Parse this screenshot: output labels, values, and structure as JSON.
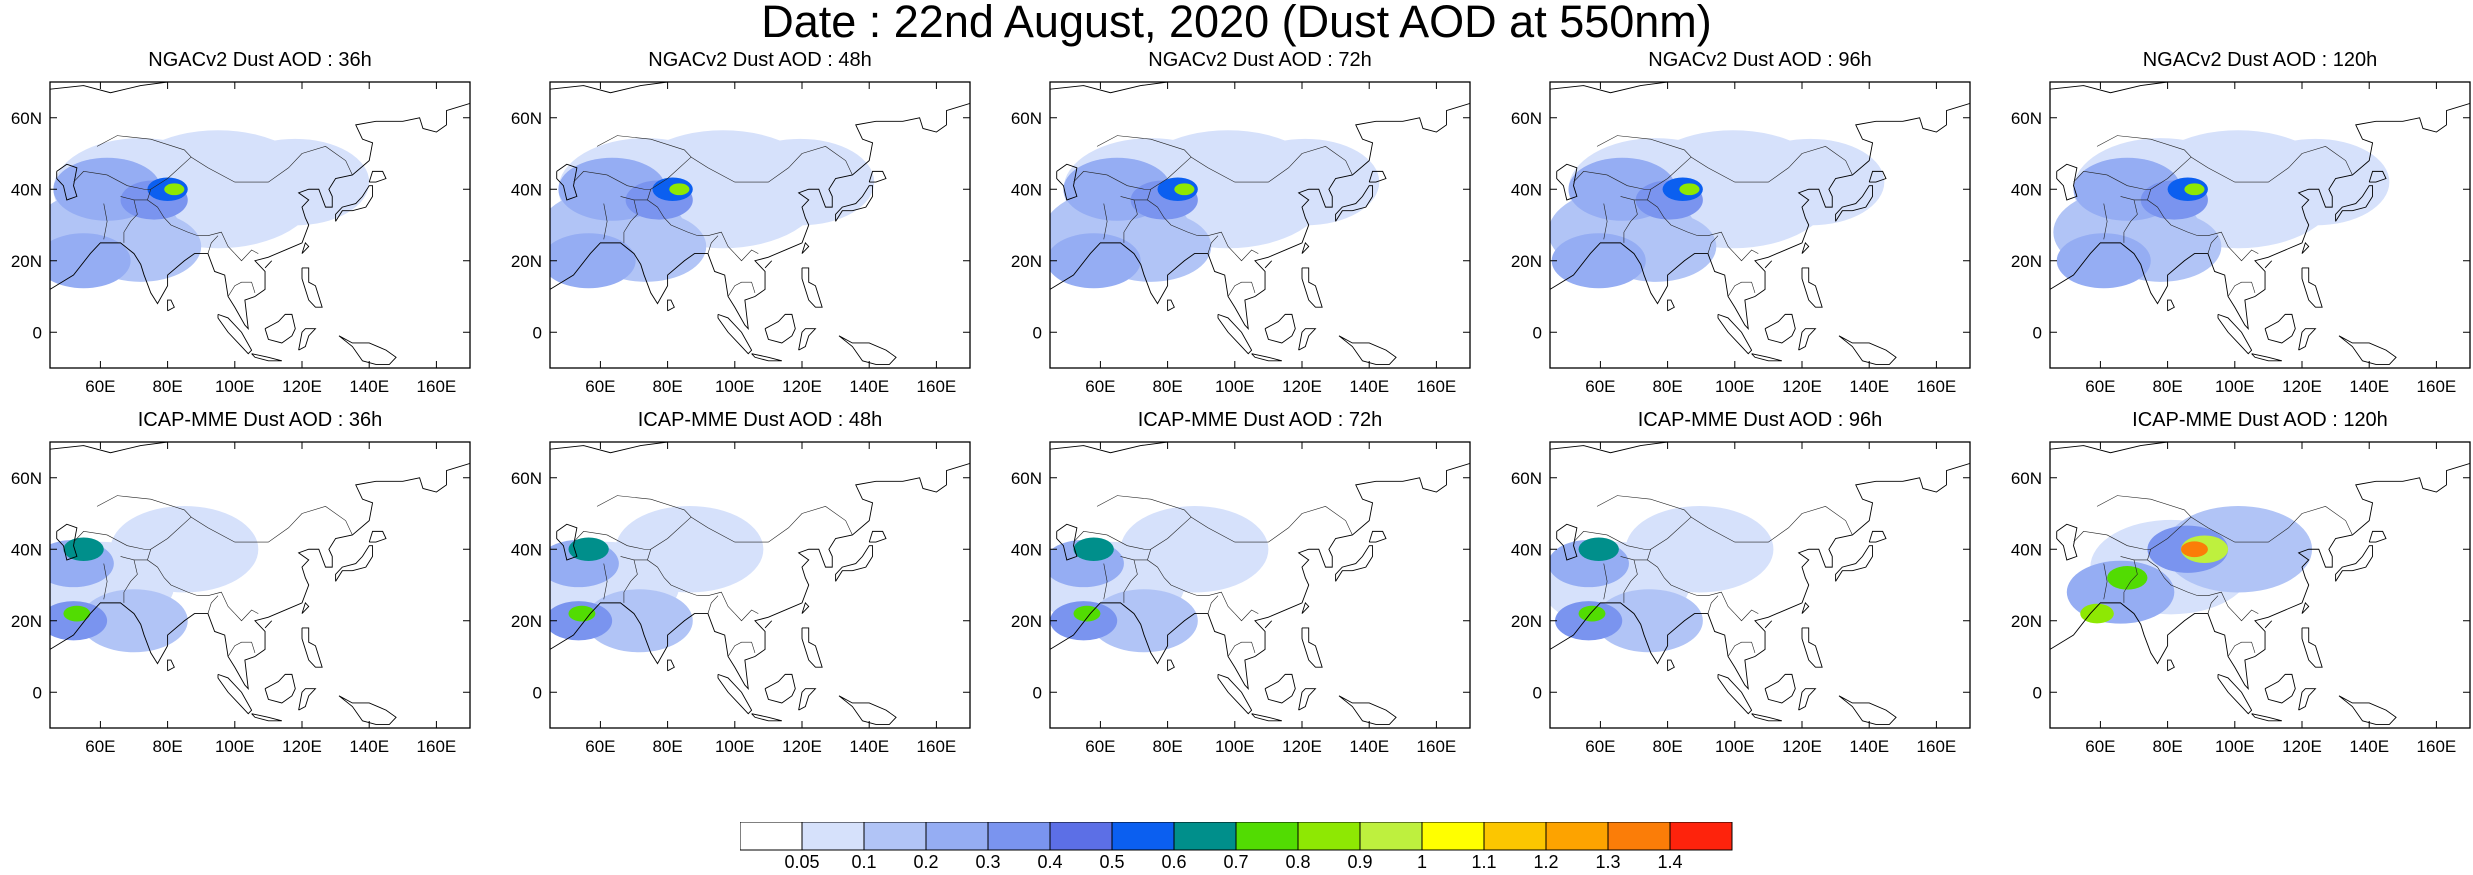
{
  "title": "Date : 22nd August, 2020 (Dust AOD at 550nm)",
  "rows": [
    {
      "model": "NGACv2",
      "panels": [
        {
          "title": "NGACv2 Dust AOD : 36h"
        },
        {
          "title": "NGACv2 Dust AOD : 48h"
        },
        {
          "title": "NGACv2 Dust AOD : 72h"
        },
        {
          "title": "NGACv2 Dust AOD : 96h"
        },
        {
          "title": "NGACv2 Dust AOD : 120h"
        }
      ]
    },
    {
      "model": "ICAP-MME",
      "panels": [
        {
          "title": "ICAP-MME Dust AOD : 36h"
        },
        {
          "title": "ICAP-MME Dust AOD : 48h"
        },
        {
          "title": "ICAP-MME Dust AOD : 72h"
        },
        {
          "title": "ICAP-MME Dust AOD : 96h"
        },
        {
          "title": "ICAP-MME Dust AOD : 120h"
        }
      ]
    }
  ],
  "map_extent": {
    "lon": [
      45,
      170
    ],
    "lat": [
      -10,
      70
    ]
  },
  "x_ticks": [
    "60E",
    "80E",
    "100E",
    "120E",
    "140E",
    "160E"
  ],
  "x_tick_values": [
    60,
    80,
    100,
    120,
    140,
    160
  ],
  "y_ticks": [
    "0",
    "20N",
    "40N",
    "60N"
  ],
  "y_tick_values": [
    0,
    20,
    40,
    60
  ],
  "colorbar": {
    "labels": [
      "0.05",
      "0.1",
      "0.2",
      "0.3",
      "0.4",
      "0.5",
      "0.6",
      "0.7",
      "0.8",
      "0.9",
      "1",
      "1.1",
      "1.2",
      "1.3",
      "1.4"
    ],
    "colors": [
      "#ffffff",
      "#d6e1fb",
      "#b1c4f6",
      "#95adf3",
      "#7a94ef",
      "#5c6fe6",
      "#0b5ff0",
      "#008f8b",
      "#52dc02",
      "#8ee803",
      "#bef03e",
      "#ffff00",
      "#fcc600",
      "#fda300",
      "#fb7d08",
      "#fe230c"
    ]
  }
}
